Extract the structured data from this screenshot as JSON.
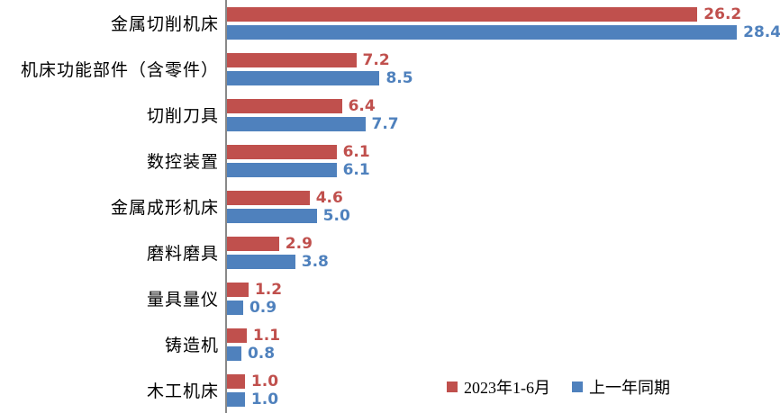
{
  "chart_data": {
    "type": "bar",
    "orientation": "horizontal",
    "title": "",
    "xlabel": "",
    "ylabel": "",
    "grid": false,
    "legend_position": "bottom-right",
    "xlim": [
      0,
      30.8
    ],
    "categories": [
      "金属切削机床",
      "机床功能部件（含零件）",
      "切削刀具",
      "数控装置",
      "金属成形机床",
      "磨料磨具",
      "量具量仪",
      "铸造机",
      "木工机床"
    ],
    "series": [
      {
        "name": "2023年1-6月",
        "color": "#C0504D",
        "values": [
          26.2,
          7.2,
          6.4,
          6.1,
          4.6,
          2.9,
          1.2,
          1.1,
          1.0
        ]
      },
      {
        "name": "上一年同期",
        "color": "#4F81BD",
        "values": [
          28.4,
          8.5,
          7.7,
          6.1,
          5.0,
          3.8,
          0.9,
          0.8,
          1.0
        ]
      }
    ]
  },
  "colors": {
    "axis": "#898989",
    "background": "#FFFFFF",
    "label_text": "#000000"
  }
}
